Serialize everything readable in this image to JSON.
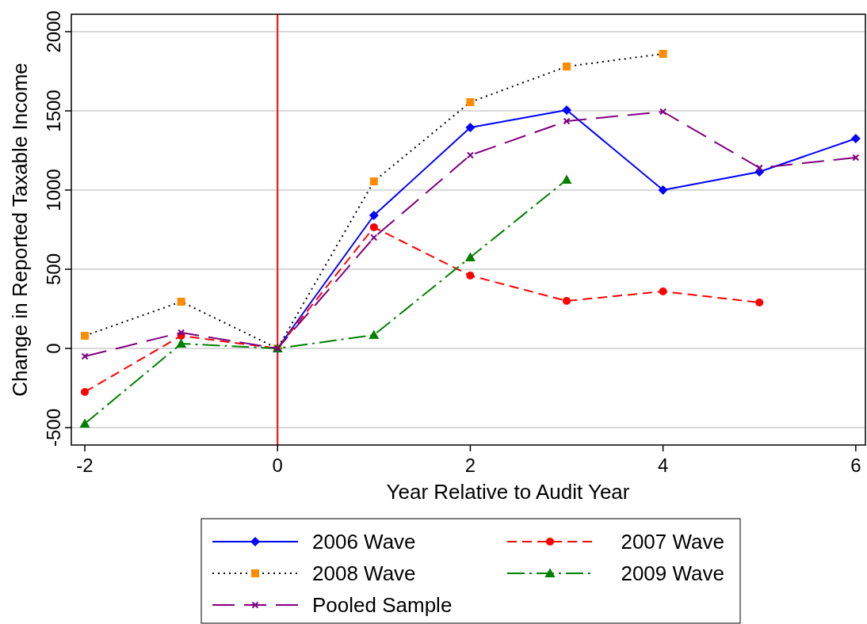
{
  "chart_data": {
    "type": "line",
    "xlabel": "Year Relative to Audit Year",
    "ylabel": "Change in Reported Taxable Income",
    "xlim": [
      -2.14,
      6.1
    ],
    "xticks": [
      -2,
      0,
      2,
      4,
      6
    ],
    "ylim": [
      -610,
      2110
    ],
    "yticks": [
      -500,
      0,
      500,
      1000,
      1500,
      2000
    ],
    "grid": "y",
    "legend": "bottom",
    "ref_lines": [
      {
        "axis": "x",
        "value": 0,
        "color": "#ff0000",
        "line_style": "solid"
      }
    ],
    "series": [
      {
        "name": "2006 Wave",
        "color": "#0000ff",
        "marker": "diamond",
        "line_style": "solid",
        "x": [
          0,
          1,
          2,
          3,
          4,
          5,
          6
        ],
        "values": [
          0,
          840,
          1395,
          1505,
          1000,
          1115,
          1325
        ]
      },
      {
        "name": "2007 Wave",
        "color": "#ff0000",
        "marker": "circle",
        "line_style": "dashed",
        "x": [
          -2,
          -1,
          0,
          1,
          2,
          3,
          4,
          5
        ],
        "values": [
          -275,
          80,
          0,
          765,
          460,
          300,
          360,
          290
        ]
      },
      {
        "name": "2008 Wave",
        "color": "#000000",
        "colors": [
          "#ff8c00",
          "#ff8c00",
          "#ff8c00",
          "#ff8c00",
          "#ff8c00",
          "#ff8c00",
          "#ff8c00"
        ],
        "marker": "square",
        "line_style": "dotted",
        "x": [
          -2,
          -1,
          0,
          1,
          2,
          3,
          4
        ],
        "values": [
          80,
          295,
          0,
          1055,
          1555,
          1780,
          1860
        ]
      },
      {
        "name": "2009 Wave",
        "color": "#008000",
        "marker": "triangle",
        "line_style": "dashed",
        "x": [
          -2,
          -1,
          0,
          1,
          2,
          3
        ],
        "values": [
          -475,
          30,
          0,
          85,
          575,
          1065
        ]
      },
      {
        "name": "Pooled Sample",
        "color": "#800080",
        "marker": "cross",
        "line_style": "dashed",
        "x": [
          -2,
          -1,
          0,
          1,
          2,
          3,
          4,
          5,
          6
        ],
        "values": [
          -50,
          100,
          0,
          700,
          1220,
          1435,
          1495,
          1140,
          1205
        ]
      }
    ]
  }
}
